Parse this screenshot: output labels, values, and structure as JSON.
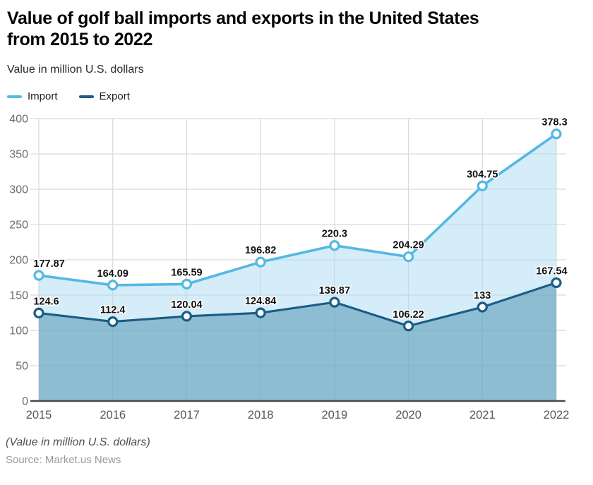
{
  "header": {
    "title_line1": "Value of golf ball imports and exports in the United States",
    "title_line2": "from 2015 to 2022"
  },
  "chart_data": {
    "type": "area",
    "title": "Value of golf ball imports and exports in the United States from 2015 to 2022",
    "subtitle": "Value in million U.S. dollars",
    "categories": [
      "2015",
      "2016",
      "2017",
      "2018",
      "2019",
      "2020",
      "2021",
      "2022"
    ],
    "series": [
      {
        "name": "Import",
        "color": "#55B8E3",
        "fill": "rgba(171,219,243,0.5)",
        "values": [
          177.87,
          164.09,
          165.59,
          196.82,
          220.3,
          204.29,
          304.75,
          378.3
        ],
        "labels": [
          "177.87",
          "164.09",
          "165.59",
          "196.82",
          "220.3",
          "204.29",
          "304.75",
          "378.3"
        ]
      },
      {
        "name": "Export",
        "color": "#1A5D85",
        "fill": "rgba(69,142,174,0.5)",
        "values": [
          124.6,
          112.4,
          120.04,
          124.84,
          139.87,
          106.22,
          133,
          167.54
        ],
        "labels": [
          "124.6",
          "112.4",
          "120.04",
          "124.84",
          "139.87",
          "106.22",
          "133",
          "167.54"
        ]
      }
    ],
    "xlabel": "",
    "ylabel": "",
    "ylim": [
      0,
      400
    ],
    "ytick_step": 50,
    "grid": true,
    "legend_position": "top-left",
    "grid_color": "#d9d9d9",
    "axis_line_color": "#4a4a4a",
    "tick_label_color": "#6b6b6b",
    "data_label_color": "#111111"
  },
  "footer": {
    "note": "(Value in million U.S. dollars)",
    "source": "Source: Market.us News"
  }
}
